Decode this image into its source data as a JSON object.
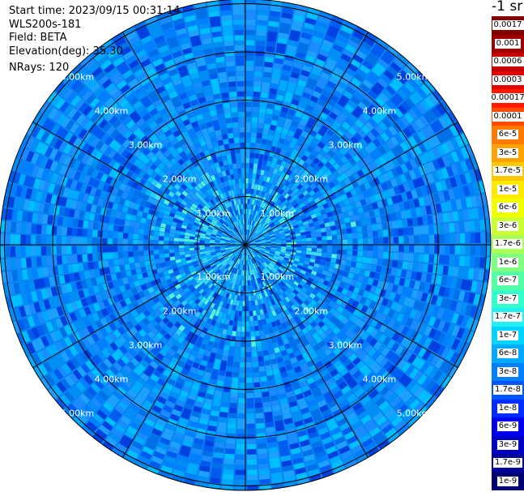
{
  "info": {
    "start_time": "Start time: 2023/09/15 00:31:14",
    "instrument": "WLS200s-181",
    "field": "Field: BETA",
    "elevation": "Elevation(deg): 35.30",
    "nrays": "NRays: 120"
  },
  "colorbar": {
    "title": "-1 sr",
    "labels": [
      "0.0017",
      "0.001",
      "0.0006",
      "0.0003",
      "0.00017",
      "0.0001",
      "6e-5",
      "3e-5",
      "1.7e-5",
      "1e-5",
      "6e-6",
      "3e-6",
      "1.7e-6",
      "1e-6",
      "6e-7",
      "3e-7",
      "1.7e-7",
      "1e-7",
      "6e-8",
      "3e-8",
      "1.7e-8",
      "1e-8",
      "6e-9",
      "3e-9",
      "1.7e-9",
      "1e-9"
    ],
    "colors": [
      "#7f0000",
      "#9e0000",
      "#c40000",
      "#e50000",
      "#ff1a00",
      "#ff4b00",
      "#ff7a00",
      "#ffa300",
      "#ffc800",
      "#ffea00",
      "#f2ff00",
      "#ccff33",
      "#a8ff55",
      "#80ff80",
      "#55ffa8",
      "#33ffcc",
      "#22f0ee",
      "#00d4ff",
      "#00aaff",
      "#0080ff",
      "#0055ff",
      "#002dff",
      "#0000ee",
      "#0000c4",
      "#00009a",
      "#000070"
    ]
  },
  "chart_data": {
    "type": "heatmap",
    "projection": "polar PPI",
    "field": "BETA",
    "unit": "-1 sr",
    "nrays": 120,
    "range_rings_km": [
      1,
      2,
      3,
      4,
      5
    ],
    "range_ring_labels": [
      "1.00km",
      "2.00km",
      "3.00km",
      "4.00km",
      "5.00km"
    ],
    "max_range_km": 5,
    "azimuth_lines_deg": [
      0,
      30,
      60,
      90,
      120,
      150,
      180,
      210,
      240,
      270,
      300,
      330
    ],
    "value_range": [
      1e-09,
      0.0017
    ],
    "scale": "log"
  }
}
